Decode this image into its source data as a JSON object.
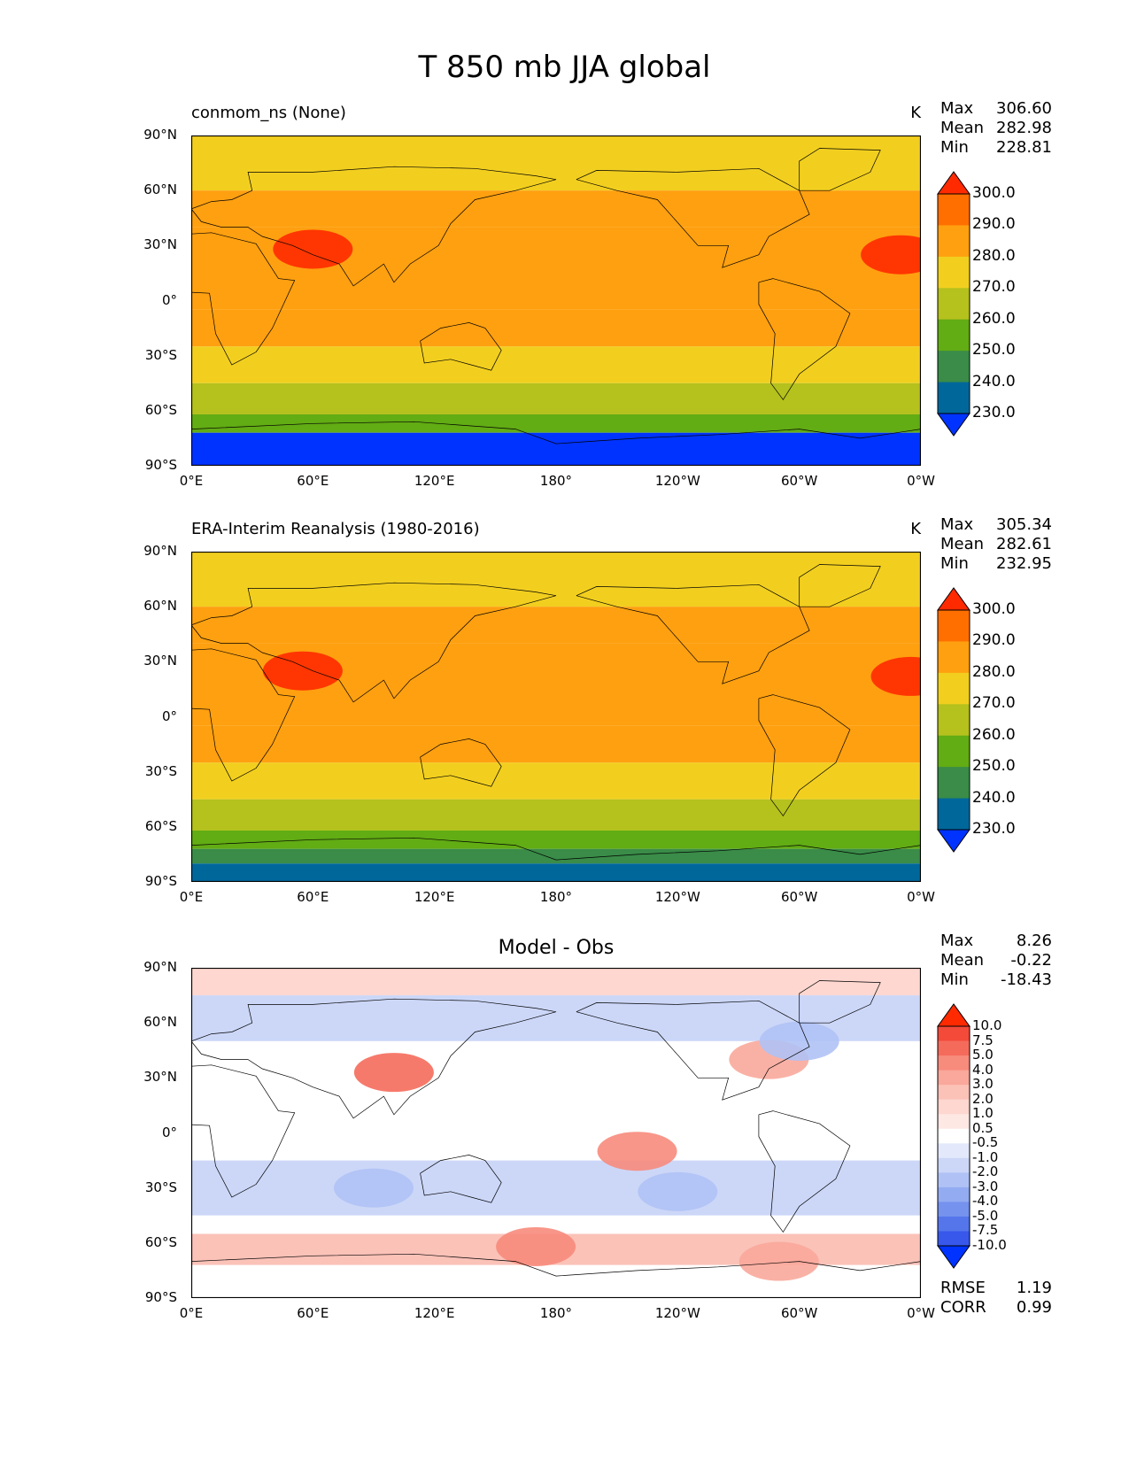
{
  "chart_data": {
    "type": "heatmap",
    "title": "T 850 mb JJA global",
    "x_ticks": [
      "0°E",
      "60°E",
      "120°E",
      "180°",
      "120°W",
      "60°W",
      "0°W"
    ],
    "y_ticks": [
      "90°N",
      "60°N",
      "30°N",
      "0°",
      "30°S",
      "60°S",
      "90°S"
    ],
    "xlim": [
      0,
      360
    ],
    "ylim": [
      -90,
      90
    ],
    "panels": [
      {
        "id": "model",
        "title": "conmom_ns (None)",
        "title_position": "left",
        "units": "K",
        "stats": [
          {
            "label": "Max",
            "value": "306.60"
          },
          {
            "label": "Mean",
            "value": "282.98"
          },
          {
            "label": "Min",
            "value": "228.81"
          }
        ],
        "colorbar_labels": [
          "300.0",
          "290.0",
          "280.0",
          "270.0",
          "260.0",
          "250.0",
          "240.0",
          "230.0"
        ],
        "colorbar_colors": [
          "#ff2a00",
          "#ff6f00",
          "#ffa010",
          "#f2cf1f",
          "#b5c11d",
          "#62ac14",
          "#3a8c48",
          "#00679b",
          "#0033ff"
        ],
        "bands": [
          {
            "lat": [
              60,
              90
            ],
            "value": 270
          },
          {
            "lat": [
              40,
              60
            ],
            "value": 280
          },
          {
            "lat": [
              -5,
              40
            ],
            "value": 282
          },
          {
            "lat": [
              -25,
              -5
            ],
            "value": 280
          },
          {
            "lat": [
              -45,
              -25
            ],
            "value": 270
          },
          {
            "lat": [
              -62,
              -45
            ],
            "value": 260
          },
          {
            "lat": [
              -72,
              -62
            ],
            "value": 250
          },
          {
            "lat": [
              -90,
              -72
            ],
            "value": 229
          }
        ],
        "hot_spots": [
          {
            "lon": 60,
            "lat": 28,
            "value": 300
          },
          {
            "lon": 350,
            "lat": 25,
            "value": 300
          }
        ]
      },
      {
        "id": "obs",
        "title": "ERA-Interim Reanalysis (1980-2016)",
        "title_position": "left",
        "units": "K",
        "stats": [
          {
            "label": "Max",
            "value": "305.34"
          },
          {
            "label": "Mean",
            "value": "282.61"
          },
          {
            "label": "Min",
            "value": "232.95"
          }
        ],
        "colorbar_labels": [
          "300.0",
          "290.0",
          "280.0",
          "270.0",
          "260.0",
          "250.0",
          "240.0",
          "230.0"
        ],
        "colorbar_colors": [
          "#ff2a00",
          "#ff6f00",
          "#ffa010",
          "#f2cf1f",
          "#b5c11d",
          "#62ac14",
          "#3a8c48",
          "#00679b",
          "#0033ff"
        ],
        "bands": [
          {
            "lat": [
              60,
              90
            ],
            "value": 270
          },
          {
            "lat": [
              40,
              60
            ],
            "value": 280
          },
          {
            "lat": [
              -5,
              40
            ],
            "value": 282
          },
          {
            "lat": [
              -25,
              -5
            ],
            "value": 280
          },
          {
            "lat": [
              -45,
              -25
            ],
            "value": 270
          },
          {
            "lat": [
              -62,
              -45
            ],
            "value": 260
          },
          {
            "lat": [
              -72,
              -62
            ],
            "value": 250
          },
          {
            "lat": [
              -80,
              -72
            ],
            "value": 240
          },
          {
            "lat": [
              -90,
              -80
            ],
            "value": 233
          }
        ],
        "hot_spots": [
          {
            "lon": 55,
            "lat": 25,
            "value": 300
          },
          {
            "lon": 355,
            "lat": 22,
            "value": 300
          }
        ]
      },
      {
        "id": "diff",
        "title": "Model - Obs",
        "title_position": "center",
        "units": "",
        "stats": [
          {
            "label": "Max",
            "value": "8.26"
          },
          {
            "label": "Mean",
            "value": "-0.22"
          },
          {
            "label": "Min",
            "value": "-18.43"
          }
        ],
        "extra_stats": [
          {
            "label": "RMSE",
            "value": "1.19"
          },
          {
            "label": "CORR",
            "value": "0.99"
          }
        ],
        "colorbar_labels": [
          "10.0",
          "7.5",
          "5.0",
          "4.0",
          "3.0",
          "2.0",
          "1.0",
          "0.5",
          "-0.5",
          "-1.0",
          "-2.0",
          "-3.0",
          "-4.0",
          "-5.0",
          "-7.5",
          "-10.0"
        ],
        "colorbar_colors": [
          "#ff2a00",
          "#f44a3a",
          "#f56b5b",
          "#f78b7c",
          "#f9a89b",
          "#fbc2b8",
          "#fdd7d0",
          "#fee8e4",
          "#ffffff",
          "#e3e9fb",
          "#ccd7f8",
          "#b0c2f5",
          "#93abf1",
          "#7592ee",
          "#5576ea",
          "#3858ec",
          "#0033ff"
        ],
        "bands": [
          {
            "lat": [
              75,
              90
            ],
            "value": 1.2
          },
          {
            "lat": [
              50,
              75
            ],
            "value": -1.5
          },
          {
            "lat": [
              15,
              50
            ],
            "value": 0
          },
          {
            "lat": [
              -15,
              15
            ],
            "value": 0
          },
          {
            "lat": [
              -45,
              -15
            ],
            "value": -1.8
          },
          {
            "lat": [
              -55,
              -45
            ],
            "value": 0
          },
          {
            "lat": [
              -72,
              -55
            ],
            "value": 2.5
          },
          {
            "lat": [
              -90,
              -72
            ],
            "value": 0
          }
        ],
        "hot_spots": [
          {
            "lon": 100,
            "lat": 33,
            "value": 6
          },
          {
            "lon": 220,
            "lat": -10,
            "value": 4
          },
          {
            "lon": 170,
            "lat": -62,
            "value": 4
          },
          {
            "lon": 290,
            "lat": -70,
            "value": 3.5
          },
          {
            "lon": 285,
            "lat": 40,
            "value": 3
          },
          {
            "lon": 300,
            "lat": 50,
            "value": -3
          },
          {
            "lon": 90,
            "lat": -30,
            "value": -2.5
          },
          {
            "lon": 240,
            "lat": -32,
            "value": -3
          }
        ]
      }
    ]
  }
}
